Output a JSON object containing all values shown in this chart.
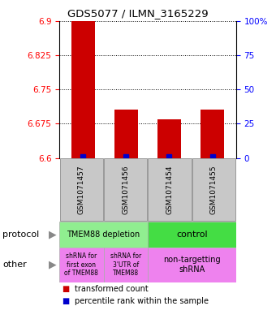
{
  "title": "GDS5077 / ILMN_3165229",
  "samples": [
    "GSM1071457",
    "GSM1071456",
    "GSM1071454",
    "GSM1071455"
  ],
  "red_values": [
    6.9,
    6.705,
    6.685,
    6.705
  ],
  "blue_values": [
    6.602,
    6.602,
    6.602,
    6.602
  ],
  "ylim": [
    6.6,
    6.9
  ],
  "yticks_left": [
    6.6,
    6.675,
    6.75,
    6.825,
    6.9
  ],
  "yticks_right": [
    0,
    25,
    50,
    75,
    100
  ],
  "protocol_labels": [
    "TMEM88 depletion",
    "control"
  ],
  "other_label1": "shRNA for\nfirst exon\nof TMEM88",
  "other_label2": "shRNA for\n3'UTR of\nTMEM88",
  "other_label3": "non-targetting\nshRNA",
  "protocol_color1": "#90EE90",
  "protocol_color2": "#44DD44",
  "other_color": "#EE82EE",
  "sample_bg_color": "#C8C8C8",
  "bar_color": "#CC0000",
  "dot_color": "#0000CC",
  "legend_red": "transformed count",
  "legend_blue": "percentile rank within the sample",
  "left_label1": "protocol",
  "left_label2": "other",
  "arrow_color": "#888888"
}
